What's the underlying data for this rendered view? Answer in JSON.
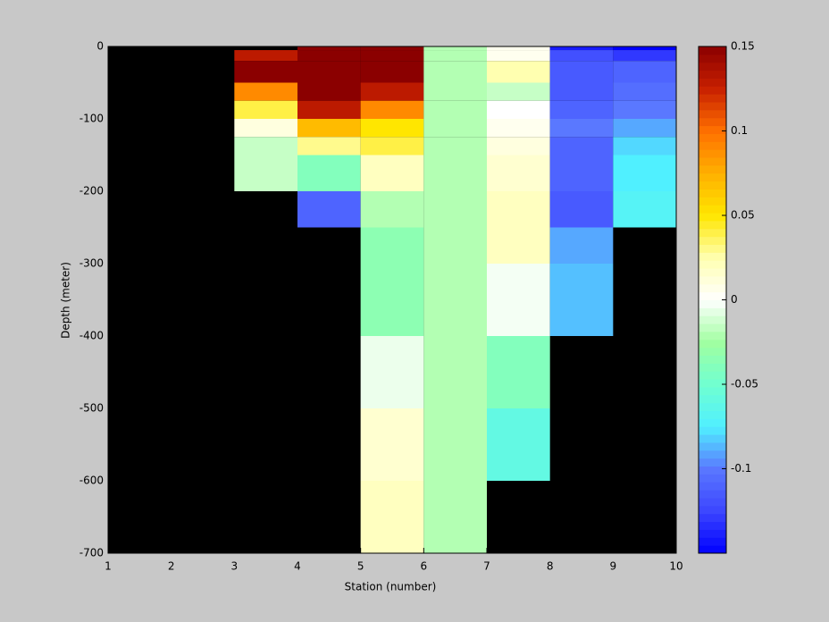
{
  "chart_data": {
    "type": "heatmap",
    "xlabel": "Station (number)",
    "ylabel": "Depth (meter)",
    "x_edges": [
      1,
      2,
      3,
      4,
      5,
      6,
      7,
      8,
      9,
      10
    ],
    "y_edges": [
      0,
      -5,
      -20,
      -50,
      -75,
      -100,
      -125,
      -150,
      -200,
      -250,
      -300,
      -400,
      -500,
      -600,
      -700
    ],
    "values": [
      [
        null,
        null,
        null,
        0.15,
        0.15,
        -0.02,
        0.005,
        -0.14,
        -0.15
      ],
      [
        null,
        null,
        0.13,
        0.15,
        0.15,
        -0.02,
        0.005,
        -0.12,
        -0.13
      ],
      [
        null,
        null,
        0.15,
        0.15,
        0.15,
        -0.02,
        0.025,
        -0.115,
        -0.11
      ],
      [
        null,
        null,
        0.09,
        0.15,
        0.13,
        -0.02,
        -0.015,
        -0.115,
        -0.105
      ],
      [
        null,
        null,
        0.04,
        0.13,
        0.09,
        -0.02,
        0.0,
        -0.11,
        -0.1
      ],
      [
        null,
        null,
        0.01,
        0.07,
        0.05,
        -0.02,
        0.005,
        -0.1,
        -0.09
      ],
      [
        null,
        null,
        -0.015,
        0.03,
        0.04,
        -0.02,
        0.01,
        -0.11,
        -0.08
      ],
      [
        null,
        null,
        -0.015,
        -0.04,
        0.02,
        -0.02,
        0.015,
        -0.11,
        -0.075
      ],
      [
        null,
        null,
        null,
        -0.11,
        -0.02,
        -0.02,
        0.02,
        -0.115,
        -0.07
      ],
      [
        null,
        null,
        null,
        null,
        -0.035,
        -0.02,
        0.02,
        -0.09,
        null
      ],
      [
        null,
        null,
        null,
        null,
        -0.035,
        -0.02,
        -0.003,
        -0.085,
        null
      ],
      [
        null,
        null,
        null,
        null,
        -0.005,
        -0.02,
        -0.04,
        null,
        null
      ],
      [
        null,
        null,
        null,
        null,
        0.015,
        -0.02,
        -0.06,
        null,
        null
      ],
      [
        null,
        null,
        null,
        null,
        0.02,
        -0.02,
        null,
        null,
        null
      ]
    ],
    "xlim": [
      1,
      10
    ],
    "xticks": [
      1,
      2,
      3,
      4,
      5,
      6,
      7,
      8,
      9,
      10
    ],
    "ylim": [
      -700,
      0
    ],
    "yticks": [
      -700,
      -600,
      -500,
      -400,
      -300,
      -200,
      -100,
      0
    ],
    "clim": [
      -0.15,
      0.15
    ],
    "cticks": [
      -0.1,
      -0.05,
      0,
      0.05,
      0.1,
      0.15
    ],
    "colormap": [
      "#0000ff",
      "#3c46ff",
      "#5a78ff",
      "#50f0ff",
      "#70ffd0",
      "#a0ffa0",
      "#ffffff",
      "#ffffb0",
      "#ffe600",
      "#ffb000",
      "#ff7000",
      "#c82000",
      "#8b0000"
    ],
    "missing_color": "#000000"
  }
}
